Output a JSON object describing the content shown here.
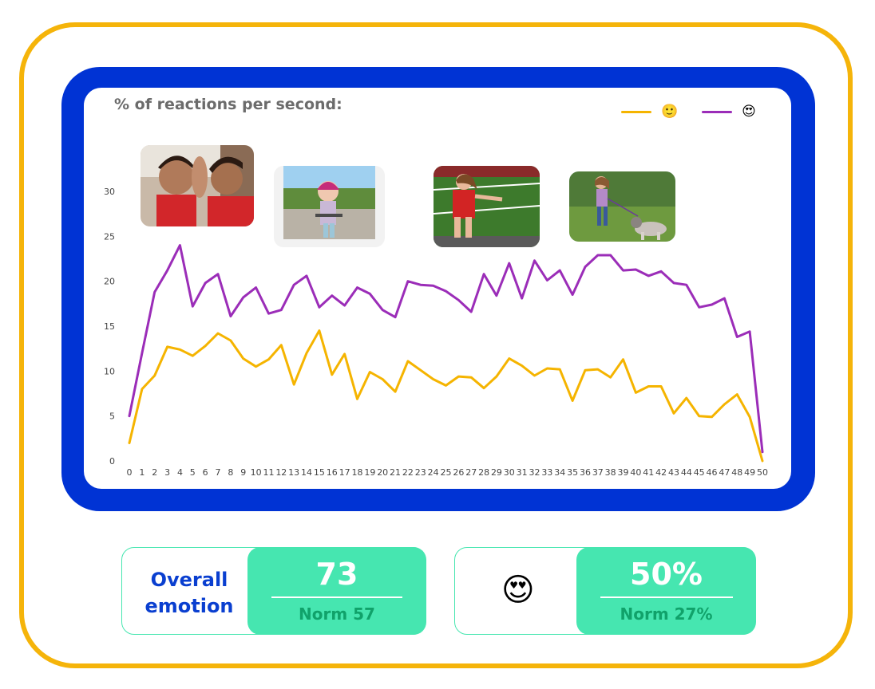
{
  "chart_data": {
    "type": "line",
    "title": "% of reactions per second:",
    "x": [
      0,
      1,
      2,
      3,
      4,
      5,
      6,
      7,
      8,
      9,
      10,
      11,
      12,
      13,
      14,
      15,
      16,
      17,
      18,
      19,
      20,
      21,
      22,
      23,
      24,
      25,
      26,
      27,
      28,
      29,
      30,
      31,
      32,
      33,
      34,
      35,
      36,
      37,
      38,
      39,
      40,
      41,
      42,
      43,
      44,
      45,
      46,
      47,
      48,
      49,
      50
    ],
    "ylim": [
      0,
      30
    ],
    "yticks": [
      0,
      5,
      10,
      15,
      20,
      25,
      30
    ],
    "grid": false,
    "legend": "top-right",
    "series": [
      {
        "name": "🙂",
        "color": "#f5b400",
        "values": [
          2,
          8,
          9.5,
          12.7,
          12.4,
          11.7,
          12.8,
          14.2,
          13.4,
          11.4,
          10.5,
          11.3,
          12.9,
          8.5,
          12,
          14.5,
          9.6,
          11.9,
          6.9,
          9.9,
          9.1,
          7.7,
          11.1,
          10.1,
          9.1,
          8.4,
          9.4,
          9.3,
          8.1,
          9.4,
          11.4,
          10.6,
          9.5,
          10.3,
          10.2,
          6.7,
          10.1,
          10.2,
          9.3,
          11.3,
          7.6,
          8.3,
          8.3,
          5.3,
          7,
          5,
          4.9,
          6.3,
          7.4,
          4.9,
          0
        ]
      },
      {
        "name": "😍",
        "color": "#9b2db8",
        "values": [
          5,
          12,
          18.8,
          21.2,
          24,
          17.2,
          19.8,
          20.8,
          16.1,
          18.2,
          19.3,
          16.4,
          16.8,
          19.6,
          20.6,
          17.1,
          18.4,
          17.3,
          19.3,
          18.6,
          16.8,
          16,
          20,
          19.6,
          19.5,
          18.9,
          17.9,
          16.6,
          20.8,
          18.4,
          22,
          18.1,
          22.3,
          20.1,
          21.2,
          18.5,
          21.6,
          22.9,
          22.9,
          21.2,
          21.3,
          20.6,
          21.1,
          19.8,
          19.6,
          17.1,
          17.4,
          18.1,
          13.8,
          14.4,
          1
        ]
      }
    ]
  },
  "stats": [
    {
      "label_line1": "Overall",
      "label_line2": "emotion",
      "value": "73",
      "norm": "Norm 57"
    },
    {
      "emoji": "😍",
      "value": "50%",
      "norm": "Norm 27%"
    }
  ],
  "colors": {
    "frame": "#f5b40a",
    "blue": "#0033d4",
    "mint": "#46e6b0",
    "label_blue": "#0a3fd0"
  },
  "thumbnails": [
    {
      "name": "two-children-photo"
    },
    {
      "name": "girl-scooter-photo"
    },
    {
      "name": "girl-running-field-photo"
    },
    {
      "name": "girl-walking-dog-photo"
    }
  ]
}
